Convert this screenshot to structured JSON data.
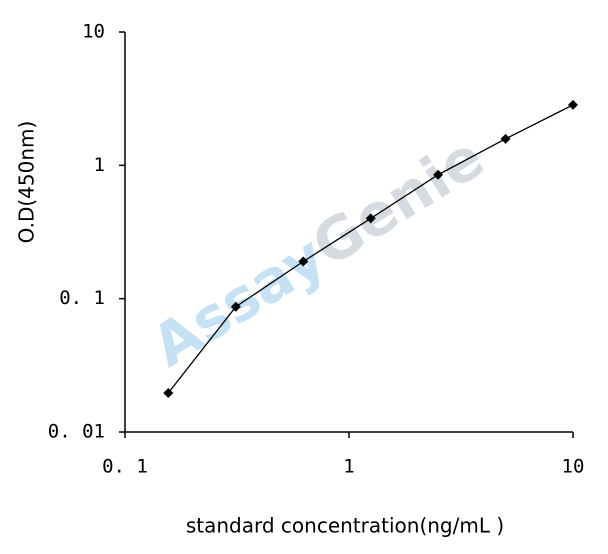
{
  "chart_data": {
    "type": "line",
    "x_label": "standard concentration(ng/mL )",
    "y_label": "O.D(450nm)",
    "watermark": [
      "Assay",
      "Genie"
    ],
    "watermark_colors": [
      "#5aaee0",
      "#8a9aa8"
    ],
    "x": [
      0.156,
      0.3125,
      0.625,
      1.25,
      2.5,
      5,
      10
    ],
    "values": [
      0.0196,
      0.087,
      0.19,
      0.4,
      0.85,
      1.58,
      2.84
    ],
    "color": "#000000",
    "xscale": "log",
    "yscale": "log",
    "xlim": [
      0.1,
      10
    ],
    "ylim": [
      0.01,
      10
    ],
    "xticks": [
      {
        "value": 0.1,
        "label": "0. 1"
      },
      1,
      10
    ],
    "yticks": [
      {
        "value": 0.01,
        "label": "0. 01"
      },
      {
        "value": 0.1,
        "label": "0. 1"
      },
      1,
      10
    ]
  }
}
